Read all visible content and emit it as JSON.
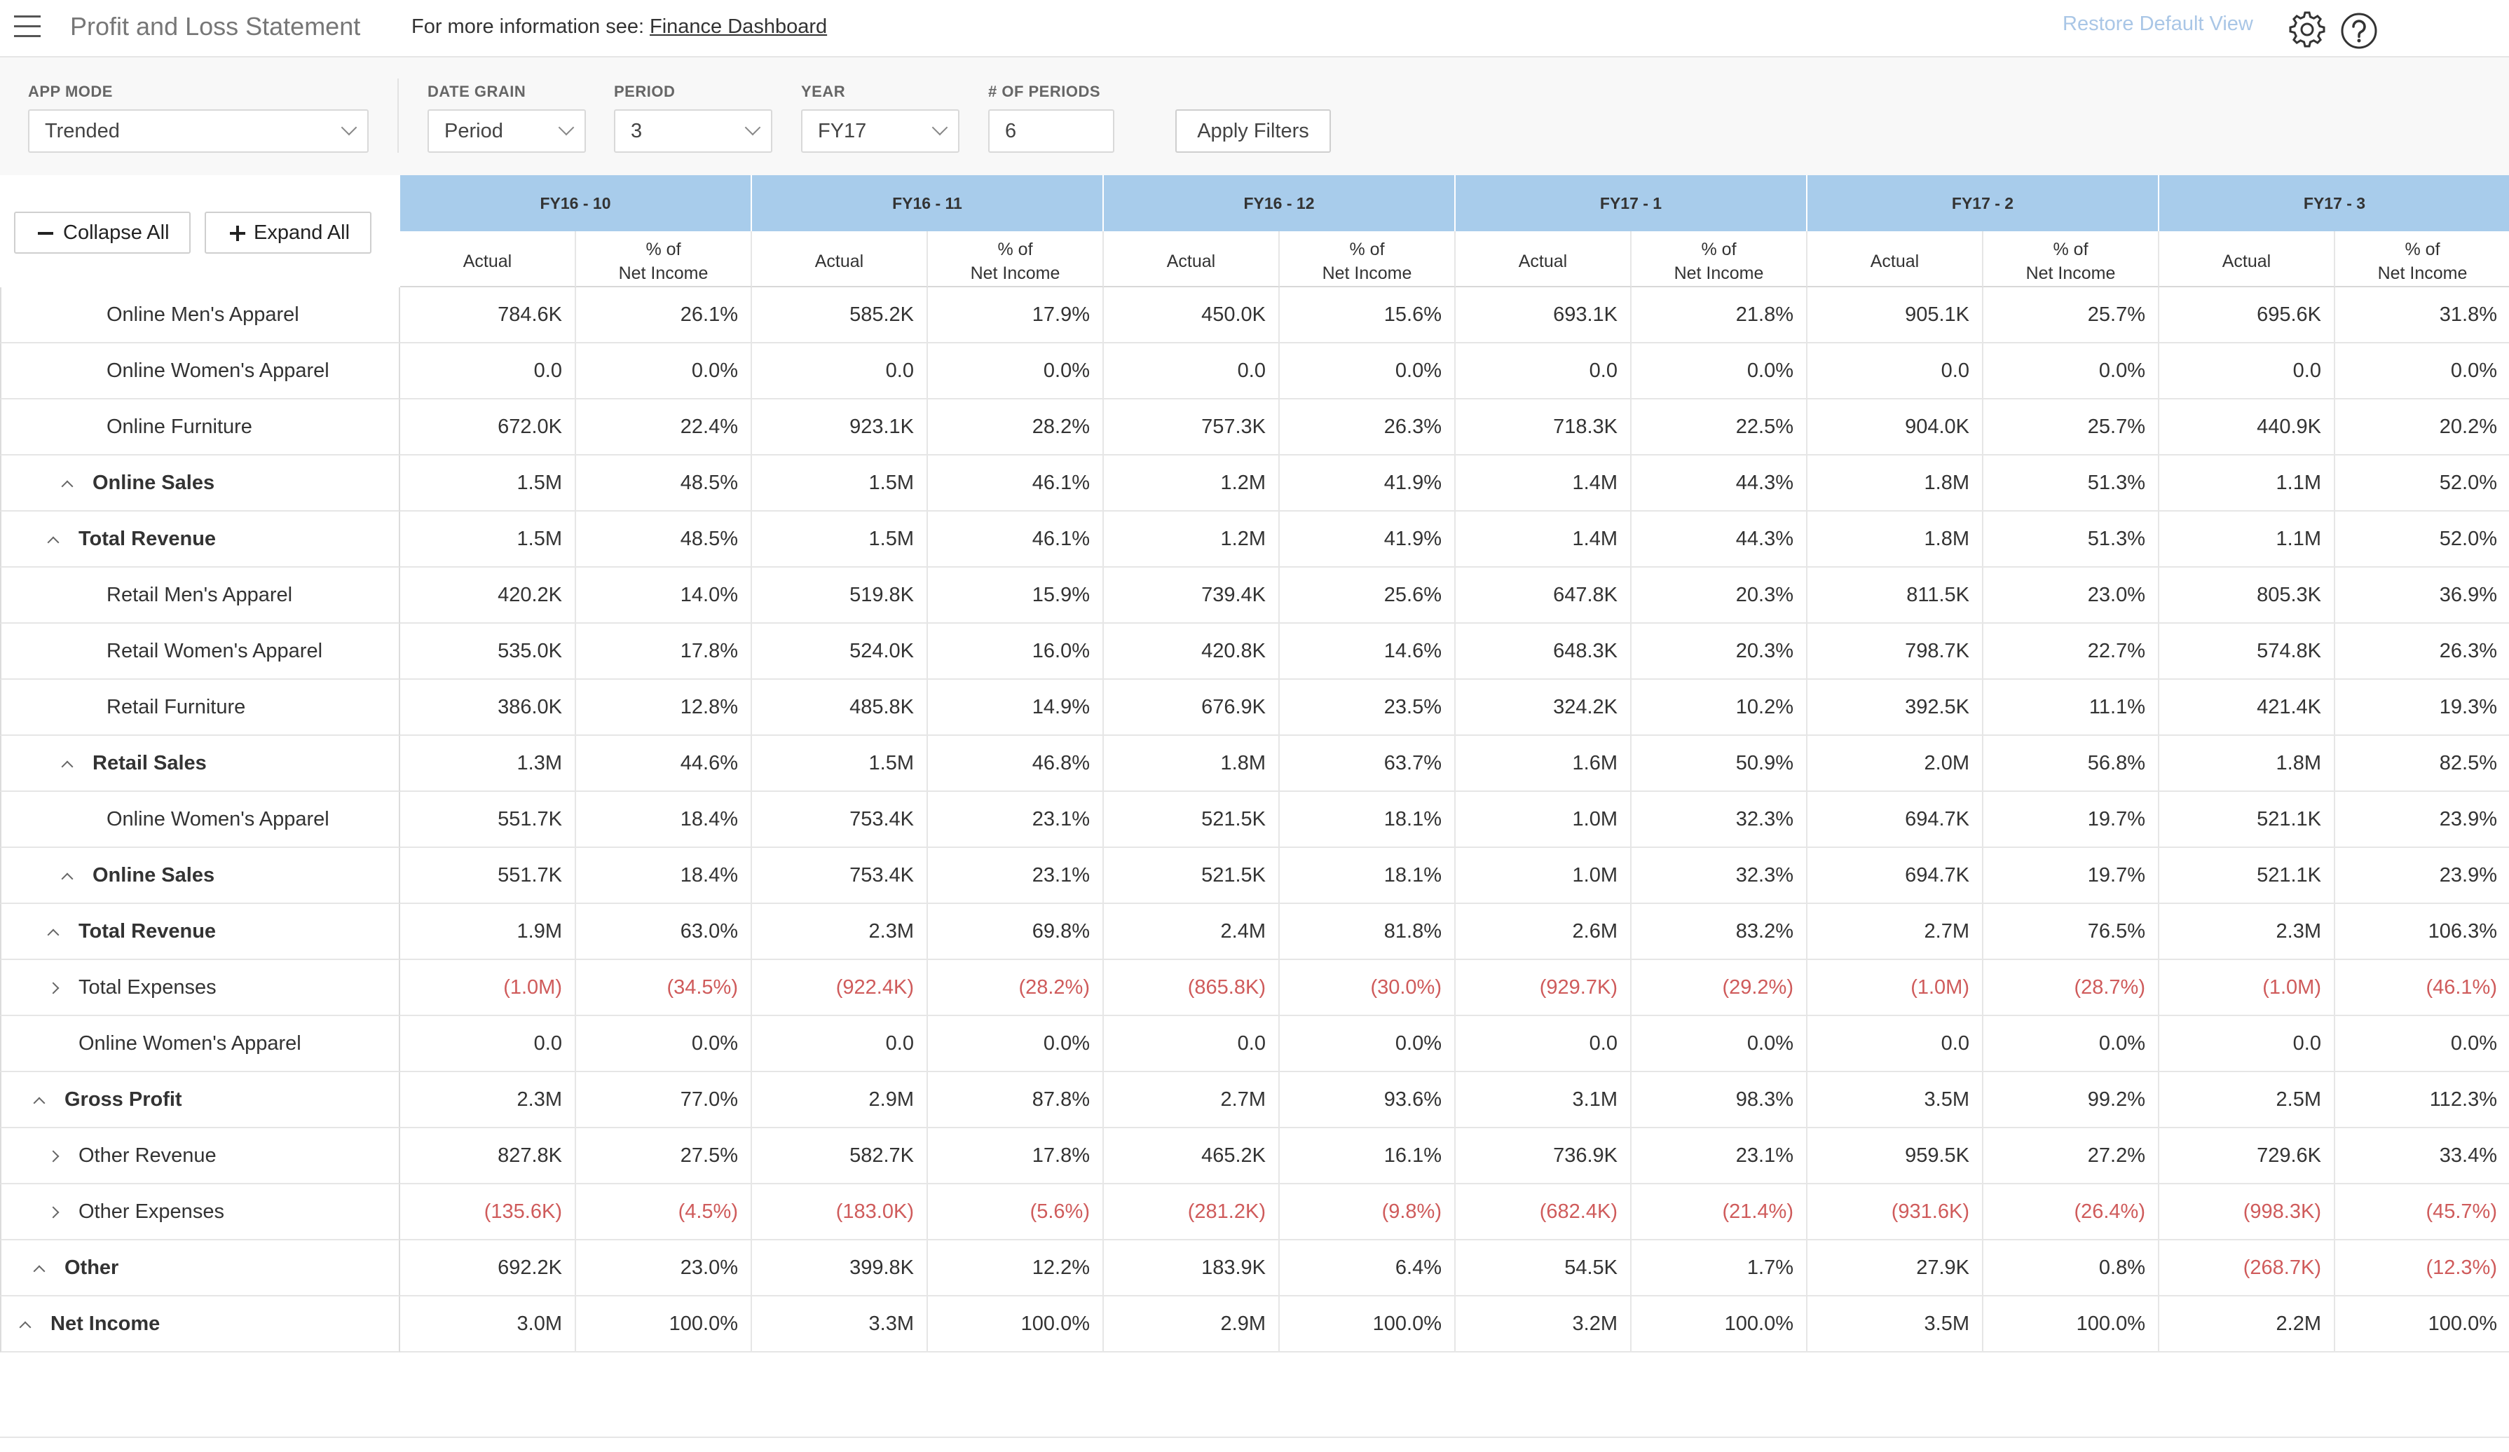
{
  "header": {
    "app_title": "Profit and Loss Statement",
    "info_prefix": "For more information see:",
    "info_link": "Finance Dashboard",
    "restore_label": "Restore Default View"
  },
  "filters": {
    "app_mode": {
      "label": "APP MODE",
      "value": "Trended"
    },
    "date_grain": {
      "label": "DATE GRAIN",
      "value": "Period"
    },
    "period": {
      "label": "PERIOD",
      "value": "3"
    },
    "year": {
      "label": "YEAR",
      "value": "FY17"
    },
    "num_periods": {
      "label": "# OF PERIODS",
      "value": "6"
    },
    "apply_label": "Apply Filters"
  },
  "controls": {
    "collapse_label": "Collapse All",
    "expand_label": "Expand All"
  },
  "table": {
    "periods": [
      "FY16 - 10",
      "FY16 - 11",
      "FY16 - 12",
      "FY17 - 1",
      "FY17 - 2",
      "FY17 - 3"
    ],
    "sub_actual": "Actual",
    "sub_pct_line1": "% of",
    "sub_pct_line2": "Net Income",
    "rows": [
      {
        "label": "Online Men's Apparel",
        "level": 3,
        "bold": false,
        "caret": "",
        "values": [
          "784.6K",
          "26.1%",
          "585.2K",
          "17.9%",
          "450.0K",
          "15.6%",
          "693.1K",
          "21.8%",
          "905.1K",
          "25.7%",
          "695.6K",
          "31.8%"
        ]
      },
      {
        "label": "Online Women's Apparel",
        "level": 3,
        "bold": false,
        "caret": "",
        "values": [
          "0.0",
          "0.0%",
          "0.0",
          "0.0%",
          "0.0",
          "0.0%",
          "0.0",
          "0.0%",
          "0.0",
          "0.0%",
          "0.0",
          "0.0%"
        ]
      },
      {
        "label": "Online Furniture",
        "level": 3,
        "bold": false,
        "caret": "",
        "values": [
          "672.0K",
          "22.4%",
          "923.1K",
          "28.2%",
          "757.3K",
          "26.3%",
          "718.3K",
          "22.5%",
          "904.0K",
          "25.7%",
          "440.9K",
          "20.2%"
        ]
      },
      {
        "label": "Online Sales",
        "level": 2,
        "bold": true,
        "caret": "up",
        "values": [
          "1.5M",
          "48.5%",
          "1.5M",
          "46.1%",
          "1.2M",
          "41.9%",
          "1.4M",
          "44.3%",
          "1.8M",
          "51.3%",
          "1.1M",
          "52.0%"
        ]
      },
      {
        "label": "Total Revenue",
        "level": 1,
        "bold": true,
        "caret": "up",
        "values": [
          "1.5M",
          "48.5%",
          "1.5M",
          "46.1%",
          "1.2M",
          "41.9%",
          "1.4M",
          "44.3%",
          "1.8M",
          "51.3%",
          "1.1M",
          "52.0%"
        ]
      },
      {
        "label": "Retail Men's Apparel",
        "level": 3,
        "bold": false,
        "caret": "",
        "values": [
          "420.2K",
          "14.0%",
          "519.8K",
          "15.9%",
          "739.4K",
          "25.6%",
          "647.8K",
          "20.3%",
          "811.5K",
          "23.0%",
          "805.3K",
          "36.9%"
        ]
      },
      {
        "label": "Retail Women's Apparel",
        "level": 3,
        "bold": false,
        "caret": "",
        "values": [
          "535.0K",
          "17.8%",
          "524.0K",
          "16.0%",
          "420.8K",
          "14.6%",
          "648.3K",
          "20.3%",
          "798.7K",
          "22.7%",
          "574.8K",
          "26.3%"
        ]
      },
      {
        "label": "Retail Furniture",
        "level": 3,
        "bold": false,
        "caret": "",
        "values": [
          "386.0K",
          "12.8%",
          "485.8K",
          "14.9%",
          "676.9K",
          "23.5%",
          "324.2K",
          "10.2%",
          "392.5K",
          "11.1%",
          "421.4K",
          "19.3%"
        ]
      },
      {
        "label": "Retail Sales",
        "level": 2,
        "bold": true,
        "caret": "up",
        "values": [
          "1.3M",
          "44.6%",
          "1.5M",
          "46.8%",
          "1.8M",
          "63.7%",
          "1.6M",
          "50.9%",
          "2.0M",
          "56.8%",
          "1.8M",
          "82.5%"
        ]
      },
      {
        "label": "Online Women's Apparel",
        "level": 3,
        "bold": false,
        "caret": "",
        "values": [
          "551.7K",
          "18.4%",
          "753.4K",
          "23.1%",
          "521.5K",
          "18.1%",
          "1.0M",
          "32.3%",
          "694.7K",
          "19.7%",
          "521.1K",
          "23.9%"
        ]
      },
      {
        "label": "Online Sales",
        "level": 2,
        "bold": true,
        "caret": "up",
        "values": [
          "551.7K",
          "18.4%",
          "753.4K",
          "23.1%",
          "521.5K",
          "18.1%",
          "1.0M",
          "32.3%",
          "694.7K",
          "19.7%",
          "521.1K",
          "23.9%"
        ]
      },
      {
        "label": "Total Revenue",
        "level": 1,
        "bold": true,
        "caret": "up",
        "values": [
          "1.9M",
          "63.0%",
          "2.3M",
          "69.8%",
          "2.4M",
          "81.8%",
          "2.6M",
          "83.2%",
          "2.7M",
          "76.5%",
          "2.3M",
          "106.3%"
        ]
      },
      {
        "label": "Total Expenses",
        "level": 1,
        "bold": false,
        "caret": "right",
        "values": [
          "(1.0M)",
          "(34.5%)",
          "(922.4K)",
          "(28.2%)",
          "(865.8K)",
          "(30.0%)",
          "(929.7K)",
          "(29.2%)",
          "(1.0M)",
          "(28.7%)",
          "(1.0M)",
          "(46.1%)"
        ]
      },
      {
        "label": "Online Women's Apparel",
        "level": 1,
        "bold": false,
        "caret": "",
        "values": [
          "0.0",
          "0.0%",
          "0.0",
          "0.0%",
          "0.0",
          "0.0%",
          "0.0",
          "0.0%",
          "0.0",
          "0.0%",
          "0.0",
          "0.0%"
        ]
      },
      {
        "label": "Gross Profit",
        "level": 0,
        "bold": true,
        "caret": "up",
        "values": [
          "2.3M",
          "77.0%",
          "2.9M",
          "87.8%",
          "2.7M",
          "93.6%",
          "3.1M",
          "98.3%",
          "3.5M",
          "99.2%",
          "2.5M",
          "112.3%"
        ]
      },
      {
        "label": "Other Revenue",
        "level": 1,
        "bold": false,
        "caret": "right",
        "values": [
          "827.8K",
          "27.5%",
          "582.7K",
          "17.8%",
          "465.2K",
          "16.1%",
          "736.9K",
          "23.1%",
          "959.5K",
          "27.2%",
          "729.6K",
          "33.4%"
        ]
      },
      {
        "label": "Other Expenses",
        "level": 1,
        "bold": false,
        "caret": "right",
        "values": [
          "(135.6K)",
          "(4.5%)",
          "(183.0K)",
          "(5.6%)",
          "(281.2K)",
          "(9.8%)",
          "(682.4K)",
          "(21.4%)",
          "(931.6K)",
          "(26.4%)",
          "(998.3K)",
          "(45.7%)"
        ]
      },
      {
        "label": "Other",
        "level": 0,
        "bold": true,
        "caret": "up",
        "values": [
          "692.2K",
          "23.0%",
          "399.8K",
          "12.2%",
          "183.9K",
          "6.4%",
          "54.5K",
          "1.7%",
          "27.9K",
          "0.8%",
          "(268.7K)",
          "(12.3%)"
        ]
      },
      {
        "label": "Net Income",
        "level": -1,
        "bold": true,
        "caret": "up",
        "values": [
          "3.0M",
          "100.0%",
          "3.3M",
          "100.0%",
          "2.9M",
          "100.0%",
          "3.2M",
          "100.0%",
          "3.5M",
          "100.0%",
          "2.2M",
          "100.0%"
        ]
      }
    ]
  },
  "colors": {
    "header_blue": "#a8cceb",
    "negative_red": "#cf5b5b",
    "restore_link": "#a9c6e6"
  }
}
